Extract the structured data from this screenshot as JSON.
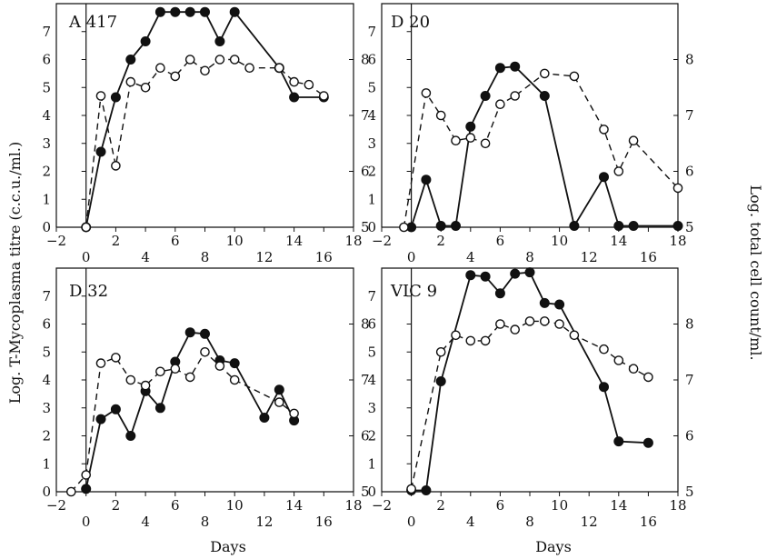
{
  "figure": {
    "xlabel": "Days",
    "ylabel_left": "Log. T-Mycoplasma titre (c.c.u./ml.)",
    "ylabel_right": "Log. total cell count/ml."
  },
  "chart_data": [
    {
      "type": "line",
      "title": "A 417",
      "xlim": [
        -2,
        18
      ],
      "ylim_left": [
        0,
        8
      ],
      "ylim_right": [
        5,
        9
      ],
      "x_ticks": [
        -2,
        0,
        2,
        4,
        6,
        8,
        10,
        12,
        14,
        16,
        18
      ],
      "y_ticks_left": [
        0,
        1,
        2,
        3,
        4,
        5,
        6,
        7
      ],
      "y_ticks_right": [
        5,
        6,
        7,
        8
      ],
      "series": [
        {
          "style": "solid-filled",
          "axis": "left",
          "x": [
            0,
            1,
            2,
            3,
            4,
            5,
            6,
            7,
            8,
            9,
            10,
            13,
            14,
            16
          ],
          "y": [
            0,
            2.7,
            4.65,
            6.0,
            6.65,
            7.7,
            7.7,
            7.7,
            7.7,
            6.65,
            7.7,
            5.7,
            4.65,
            4.65
          ]
        },
        {
          "style": "dashed-open",
          "axis": "right",
          "x": [
            0,
            1,
            2,
            3,
            4,
            5,
            6,
            7,
            8,
            9,
            10,
            11,
            13,
            14,
            15,
            16
          ],
          "y": [
            5.0,
            7.35,
            6.1,
            7.6,
            7.5,
            7.85,
            7.7,
            8.0,
            7.8,
            8.0,
            8.0,
            7.85,
            7.85,
            7.6,
            7.55,
            7.35
          ]
        }
      ]
    },
    {
      "type": "line",
      "title": "D 20",
      "xlim": [
        -2,
        18
      ],
      "ylim_left": [
        0,
        8
      ],
      "ylim_right": [
        5,
        9
      ],
      "x_ticks": [
        -2,
        0,
        2,
        4,
        6,
        8,
        10,
        12,
        14,
        16,
        18
      ],
      "y_ticks_left": [
        0,
        1,
        2,
        3,
        4,
        5,
        6,
        7
      ],
      "y_ticks_right": [
        5,
        6,
        7,
        8
      ],
      "series": [
        {
          "style": "solid-filled",
          "axis": "left",
          "x": [
            0,
            1,
            2,
            3,
            4,
            5,
            6,
            7,
            9,
            11,
            13,
            14,
            15,
            18
          ],
          "y": [
            0,
            1.7,
            0.05,
            0.05,
            3.6,
            4.7,
            5.7,
            5.75,
            4.7,
            0.05,
            1.8,
            0.05,
            0.05,
            0.05
          ]
        },
        {
          "style": "dashed-open",
          "axis": "right",
          "x": [
            -0.5,
            1,
            2,
            3,
            4,
            5,
            6,
            7,
            9,
            11,
            13,
            14,
            15,
            18
          ],
          "y": [
            5.0,
            7.4,
            7.0,
            6.55,
            6.6,
            6.5,
            7.2,
            7.35,
            7.75,
            7.7,
            6.75,
            6.0,
            6.55,
            5.7
          ]
        }
      ]
    },
    {
      "type": "line",
      "title": "D 32",
      "xlim": [
        -2,
        18
      ],
      "ylim_left": [
        0,
        8
      ],
      "ylim_right": [
        5,
        9
      ],
      "x_ticks": [
        -2,
        0,
        2,
        4,
        6,
        8,
        10,
        12,
        14,
        16,
        18
      ],
      "y_ticks_left": [
        0,
        1,
        2,
        3,
        4,
        5,
        6,
        7
      ],
      "y_ticks_right": [
        5,
        6,
        7,
        8
      ],
      "series": [
        {
          "style": "solid-filled",
          "axis": "left",
          "x": [
            0,
            1,
            2,
            3,
            4,
            5,
            6,
            7,
            8,
            9,
            10,
            12,
            13,
            14
          ],
          "y": [
            0.1,
            2.6,
            2.95,
            2.0,
            3.6,
            3.0,
            4.65,
            5.7,
            5.65,
            4.7,
            4.6,
            2.65,
            3.65,
            2.55
          ]
        },
        {
          "style": "dashed-open",
          "axis": "right",
          "x": [
            -1,
            0,
            1,
            2,
            3,
            4,
            5,
            6,
            7,
            8,
            9,
            10,
            13,
            14
          ],
          "y": [
            5.0,
            5.3,
            7.3,
            7.4,
            7.0,
            6.9,
            7.15,
            7.2,
            7.05,
            7.5,
            7.25,
            7.0,
            6.6,
            6.4
          ]
        }
      ]
    },
    {
      "type": "line",
      "title": "VIC 9",
      "xlim": [
        -2,
        18
      ],
      "ylim_left": [
        0,
        8
      ],
      "ylim_right": [
        5,
        9
      ],
      "x_ticks": [
        -2,
        0,
        2,
        4,
        6,
        8,
        10,
        12,
        14,
        16,
        18
      ],
      "y_ticks_left": [
        0,
        1,
        2,
        3,
        4,
        5,
        6,
        7
      ],
      "y_ticks_right": [
        5,
        6,
        7,
        8
      ],
      "series": [
        {
          "style": "solid-filled",
          "axis": "left",
          "x": [
            0,
            1,
            2,
            4,
            5,
            6,
            7,
            8,
            9,
            10,
            13,
            14,
            16
          ],
          "y": [
            0.05,
            0.05,
            3.95,
            7.75,
            7.7,
            7.1,
            7.8,
            7.85,
            6.75,
            6.7,
            3.75,
            1.8,
            1.75
          ]
        },
        {
          "style": "dashed-open",
          "axis": "right",
          "x": [
            0,
            2,
            3,
            4,
            5,
            6,
            7,
            8,
            9,
            10,
            11,
            13,
            14,
            15,
            16
          ],
          "y": [
            5.05,
            7.5,
            7.8,
            7.7,
            7.7,
            8.0,
            7.9,
            8.05,
            8.05,
            8.0,
            7.8,
            7.55,
            7.35,
            7.2,
            7.05
          ]
        }
      ]
    }
  ]
}
